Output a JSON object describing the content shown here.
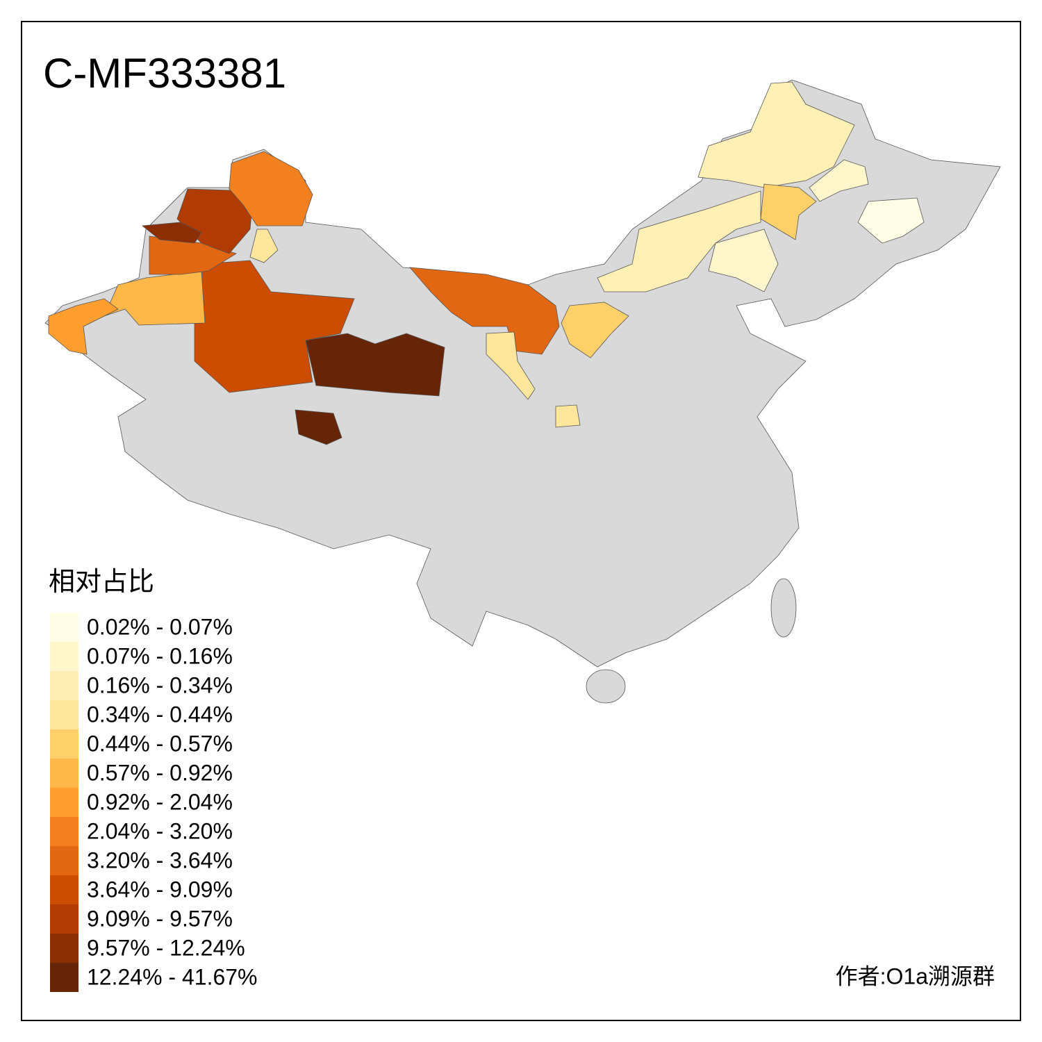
{
  "title": "C-MF333381",
  "legend": {
    "title": "相对占比",
    "items": [
      {
        "label": "0.02% - 0.07%",
        "color": "#fffde6"
      },
      {
        "label": "0.07% - 0.16%",
        "color": "#fff6cc"
      },
      {
        "label": "0.16% - 0.34%",
        "color": "#ffefb5"
      },
      {
        "label": "0.34% - 0.44%",
        "color": "#fee69c"
      },
      {
        "label": "0.44% - 0.57%",
        "color": "#fed06a"
      },
      {
        "label": "0.57% - 0.92%",
        "color": "#feb84a"
      },
      {
        "label": "0.92% - 2.04%",
        "color": "#fe9e2e"
      },
      {
        "label": "2.04% - 3.20%",
        "color": "#f3801f"
      },
      {
        "label": "3.20% - 3.64%",
        "color": "#e26712"
      },
      {
        "label": "3.64% - 9.09%",
        "color": "#cc4d02"
      },
      {
        "label": "9.09% - 9.57%",
        "color": "#b03c03"
      },
      {
        "label": "9.57% - 12.24%",
        "color": "#8c2e04"
      },
      {
        "label": "12.24% - 41.67%",
        "color": "#662506"
      }
    ]
  },
  "credit": "作者:O1a溯源群"
}
